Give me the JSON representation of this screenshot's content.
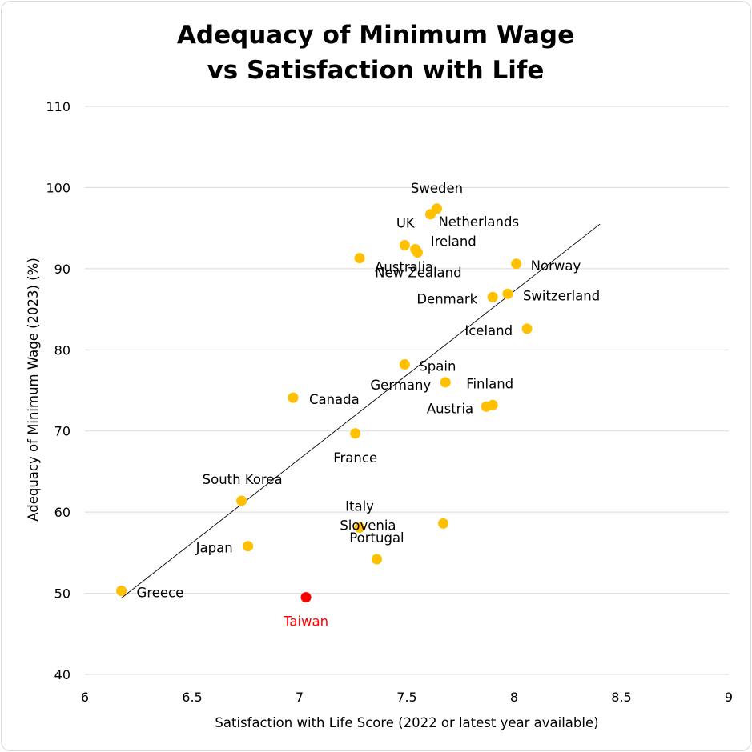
{
  "chart_data": {
    "type": "scatter",
    "title": [
      "Adequacy of Minimum Wage",
      "vs Satisfaction with Life"
    ],
    "xlabel": "Satisfaction with Life Score (2022 or latest year available)",
    "ylabel": "Adequacy of Minimum Wage (2023) (%)",
    "xlim": [
      6,
      9
    ],
    "ylim": [
      40,
      110
    ],
    "x_ticks": [
      "6",
      "6.5",
      "7",
      "7.5",
      "8",
      "8.5",
      "9"
    ],
    "y_ticks": [
      "40",
      "50",
      "60",
      "70",
      "80",
      "90",
      "100",
      "110"
    ],
    "grid": "horizontal",
    "colors": {
      "default": "#FFC000",
      "highlight": "#FF0000",
      "trendline": "#000000"
    },
    "points": [
      {
        "label": "Sweden",
        "x": 7.64,
        "y": 97.4
      },
      {
        "label": "Netherlands",
        "x": 7.61,
        "y": 96.7
      },
      {
        "label": "UK",
        "x": 7.49,
        "y": 92.9
      },
      {
        "label": "Ireland",
        "x": 7.54,
        "y": 92.4
      },
      {
        "label": "Australia",
        "x": 7.28,
        "y": 91.3
      },
      {
        "label": "New Zealand",
        "x": 7.55,
        "y": 92.0
      },
      {
        "label": "Norway",
        "x": 8.01,
        "y": 90.6
      },
      {
        "label": "Switzerland",
        "x": 7.97,
        "y": 86.9
      },
      {
        "label": "Denmark",
        "x": 7.9,
        "y": 86.5
      },
      {
        "label": "Iceland",
        "x": 8.06,
        "y": 82.6
      },
      {
        "label": "Spain",
        "x": 7.49,
        "y": 78.2
      },
      {
        "label": "Germany",
        "x": 7.68,
        "y": 76.0
      },
      {
        "label": "Finland",
        "x": 7.9,
        "y": 73.2
      },
      {
        "label": "Austria",
        "x": 7.87,
        "y": 73.0
      },
      {
        "label": "Canada",
        "x": 6.97,
        "y": 74.1
      },
      {
        "label": "France",
        "x": 7.26,
        "y": 69.7
      },
      {
        "label": "South Korea",
        "x": 6.73,
        "y": 61.4
      },
      {
        "label": "Italy",
        "x": 7.28,
        "y": 58.1
      },
      {
        "label": "Slovenia",
        "x": 7.67,
        "y": 58.6
      },
      {
        "label": "Portugal",
        "x": 7.36,
        "y": 54.2
      },
      {
        "label": "Japan",
        "x": 6.76,
        "y": 55.8
      },
      {
        "label": "Greece",
        "x": 6.17,
        "y": 50.3
      },
      {
        "label": "Taiwan",
        "x": 7.03,
        "y": 49.5,
        "highlight": true
      }
    ],
    "trendline": {
      "x": [
        6.17,
        8.4
      ],
      "y": [
        49.4,
        95.5
      ]
    }
  }
}
